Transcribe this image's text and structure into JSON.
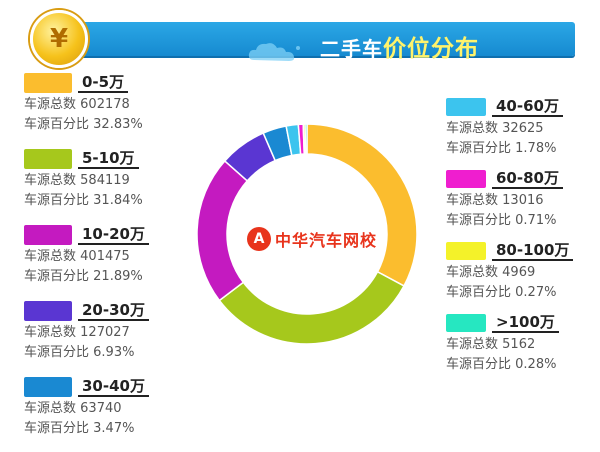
{
  "header": {
    "title_plain": "二手车",
    "title_highlight": "价位分布",
    "coin_symbol": "¥"
  },
  "watermark": {
    "logo_symbol": "A",
    "text": "中华汽车网校"
  },
  "labels": {
    "count_prefix": "车源总数",
    "percent_prefix": "车源百分比"
  },
  "chart_data": {
    "type": "pie",
    "variant": "donut",
    "title": "二手车价位分布",
    "categories": [
      "0-5万",
      "5-10万",
      "10-20万",
      "20-30万",
      "30-40万",
      "40-60万",
      "60-80万",
      "80-100万",
      ">100万"
    ],
    "counts": [
      602178,
      584119,
      401475,
      127027,
      63740,
      32625,
      13016,
      4969,
      5162
    ],
    "count_text": [
      "602178",
      "584119",
      "401475",
      "127027",
      "63740",
      "32625",
      "13016",
      "4969",
      "5162"
    ],
    "percent_text": [
      "32.83%",
      "31.84%",
      "21.89%",
      "6.93%",
      "3.47%",
      "1.78%",
      "0.71%",
      "0.27%",
      "0.28%"
    ],
    "values": [
      32.83,
      31.84,
      21.89,
      6.93,
      3.47,
      1.78,
      0.71,
      0.27,
      0.28
    ],
    "colors": [
      "#fbbd2e",
      "#a6c81c",
      "#c41ac0",
      "#5a36d2",
      "#1a89d2",
      "#3cc4ee",
      "#ef1ecf",
      "#f4f229",
      "#26e7c1"
    ]
  }
}
